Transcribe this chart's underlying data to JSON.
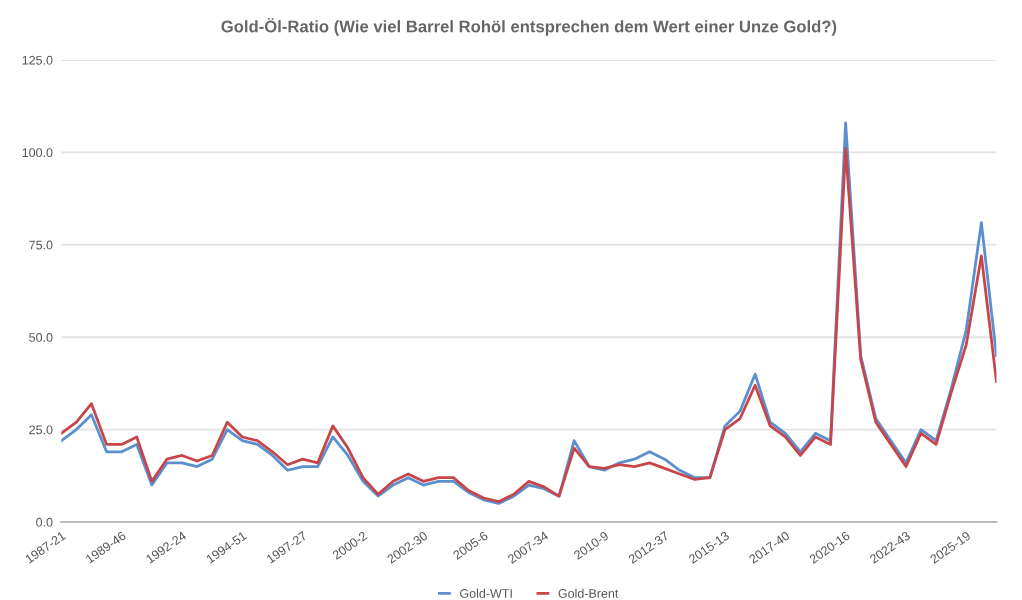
{
  "chart_data": {
    "type": "line",
    "title": "Gold-Öl-Ratio (Wie viel Barrel Rohöl entsprechen dem Wert einer Unze Gold?)",
    "categories": [
      "1987-21",
      null,
      null,
      null,
      "1989-46",
      null,
      null,
      null,
      "1992-24",
      null,
      null,
      null,
      "1994-51",
      null,
      null,
      null,
      "1997-27",
      null,
      null,
      null,
      "2000-2",
      null,
      null,
      null,
      "2002-30",
      null,
      null,
      null,
      "2005-6",
      null,
      null,
      null,
      "2007-34",
      null,
      null,
      null,
      "2010-9",
      null,
      null,
      null,
      "2012-37",
      null,
      null,
      null,
      "2015-13",
      null,
      null,
      null,
      "2017-40",
      null,
      null,
      null,
      "2020-16",
      null,
      null,
      null,
      "2022-43",
      null,
      null,
      null,
      "2025-19",
      null,
      null
    ],
    "series": [
      {
        "name": "Gold-WTI",
        "color": "#5b8fd0",
        "values": [
          22,
          25,
          29,
          19,
          19,
          21,
          10,
          16,
          16,
          15,
          17,
          25,
          22,
          21,
          18,
          14,
          15,
          15,
          23,
          18,
          11,
          7,
          10,
          12,
          10,
          11,
          11,
          8,
          6,
          5,
          7,
          10,
          9,
          7,
          22,
          15,
          14,
          16,
          17,
          19,
          17,
          14,
          12,
          12,
          26,
          30,
          40,
          27,
          24,
          19,
          24,
          22,
          108,
          45,
          28,
          22,
          16,
          25,
          22,
          36,
          52,
          81,
          45
        ]
      },
      {
        "name": "Gold-Brent",
        "color": "#c8454a",
        "values": [
          24,
          27,
          32,
          21,
          21,
          23,
          11,
          17,
          18,
          16.5,
          18,
          27,
          23,
          22,
          19,
          15.5,
          17,
          16,
          26,
          20,
          12,
          7.5,
          11,
          13,
          11,
          12,
          12,
          8.5,
          6.5,
          5.5,
          7.5,
          11,
          9.5,
          7,
          20,
          15,
          14.5,
          15.5,
          15,
          16,
          14.5,
          13,
          11.5,
          12,
          25,
          28,
          37,
          26,
          23,
          18,
          23,
          21,
          101,
          44,
          27,
          21,
          15,
          24,
          21,
          35,
          48,
          72,
          38
        ]
      }
    ],
    "ylim": [
      0,
      125
    ],
    "yticks": [
      {
        "value": 0,
        "label": "0.0"
      },
      {
        "value": 25,
        "label": "25.0"
      },
      {
        "value": 50,
        "label": "50.0"
      },
      {
        "value": 75,
        "label": "75.0"
      },
      {
        "value": 100,
        "label": "100.0"
      },
      {
        "value": 125,
        "label": "125.0"
      }
    ],
    "grid": "y",
    "legend": "bottom",
    "marker": "none",
    "line_style": "solid"
  }
}
